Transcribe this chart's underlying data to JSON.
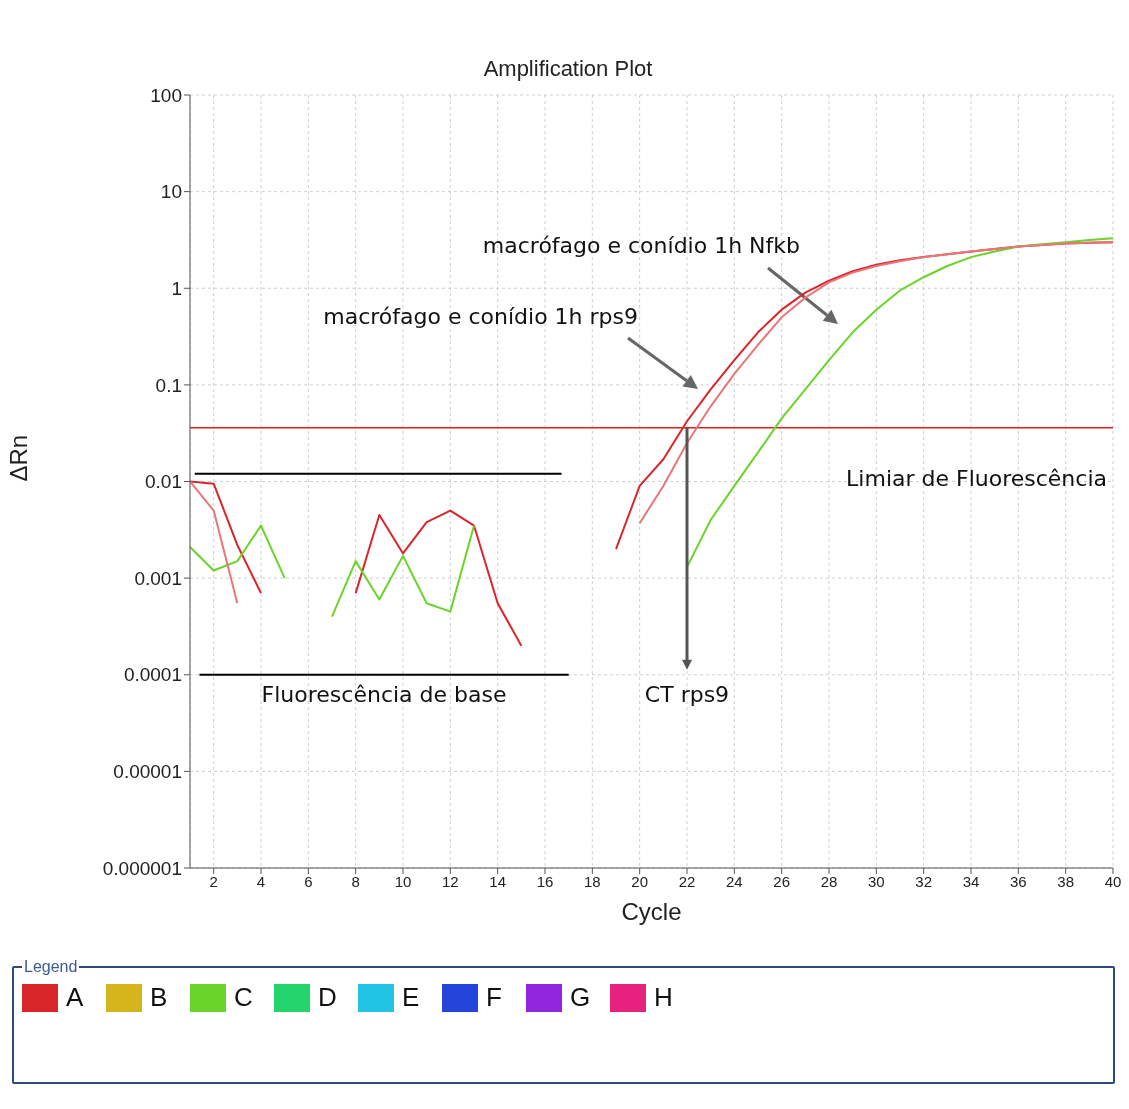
{
  "chart_data": {
    "type": "line",
    "title": "Amplification Plot",
    "xlabel": "Cycle",
    "ylabel": "ΔRn",
    "legend_title": "Legend",
    "legend": "bottom",
    "log": "y",
    "grid": true,
    "marker": "none",
    "line_style": "solid",
    "x": [
      1,
      2,
      3,
      4,
      5,
      6,
      7,
      8,
      9,
      10,
      11,
      12,
      13,
      14,
      15,
      16,
      17,
      18,
      19,
      20,
      21,
      22,
      23,
      24,
      25,
      26,
      27,
      28,
      29,
      30,
      31,
      32,
      33,
      34,
      35,
      36,
      37,
      38,
      39,
      40
    ],
    "xlim": [
      1,
      40
    ],
    "xticks": [
      2,
      4,
      6,
      8,
      10,
      12,
      14,
      16,
      18,
      20,
      22,
      24,
      26,
      28,
      30,
      32,
      34,
      36,
      38,
      40
    ],
    "ylim": [
      1e-06,
      100
    ],
    "yticks": [
      {
        "value": 1e-06,
        "label": "0.000001"
      },
      {
        "value": 1e-05,
        "label": "0.00001"
      },
      {
        "value": 0.0001,
        "label": "0.0001"
      },
      {
        "value": 0.001,
        "label": "0.001"
      },
      {
        "value": 0.01,
        "label": "0.01"
      },
      {
        "value": 0.1,
        "label": "0.1"
      },
      1,
      10,
      100
    ],
    "series": [
      {
        "name": "A",
        "color": "#d9262a",
        "values": [
          0.01,
          0.0095,
          0.0022,
          0.0007,
          null,
          null,
          null,
          0.0007,
          0.0045,
          0.0018,
          0.0038,
          0.005,
          0.0035,
          0.00055,
          0.0002,
          null,
          null,
          null,
          0.002,
          0.009,
          0.017,
          0.042,
          0.09,
          0.18,
          0.35,
          0.6,
          0.9,
          1.2,
          1.5,
          1.75,
          1.95,
          2.1,
          2.25,
          2.4,
          2.55,
          2.7,
          2.8,
          2.9,
          2.95,
          3.0
        ]
      },
      {
        "name": "B",
        "color": "#d6b41c",
        "values": [
          null,
          null,
          null,
          null,
          null,
          null,
          null,
          null,
          null,
          null,
          null,
          null,
          null,
          null,
          null,
          null,
          null,
          null,
          null,
          null,
          null,
          null,
          null,
          null,
          null,
          null,
          null,
          null,
          null,
          null,
          null,
          null,
          null,
          null,
          null,
          null,
          null,
          null,
          null,
          null
        ]
      },
      {
        "name": "C",
        "color": "#6ad42a",
        "values": [
          0.0021,
          0.0012,
          0.0015,
          0.0035,
          0.001,
          null,
          0.0004,
          0.0015,
          0.0006,
          0.0017,
          0.00055,
          0.00045,
          0.0035,
          null,
          null,
          null,
          null,
          null,
          null,
          null,
          null,
          0.0013,
          0.004,
          0.009,
          0.02,
          0.045,
          0.09,
          0.18,
          0.35,
          0.6,
          0.95,
          1.3,
          1.7,
          2.1,
          2.4,
          2.7,
          2.85,
          3.0,
          3.15,
          3.3
        ]
      },
      {
        "name": "D",
        "color": "#22d46a",
        "values": [
          null,
          null,
          null,
          null,
          null,
          null,
          null,
          null,
          null,
          null,
          null,
          null,
          null,
          null,
          null,
          null,
          null,
          null,
          null,
          null,
          null,
          null,
          null,
          null,
          null,
          null,
          null,
          null,
          null,
          null,
          null,
          null,
          null,
          null,
          null,
          null,
          null,
          null,
          null,
          null
        ]
      },
      {
        "name": "E",
        "color": "#22c4e6",
        "values": [
          null,
          null,
          null,
          null,
          null,
          null,
          null,
          null,
          null,
          null,
          null,
          null,
          null,
          null,
          null,
          null,
          null,
          null,
          null,
          null,
          null,
          null,
          null,
          null,
          null,
          null,
          null,
          null,
          null,
          null,
          null,
          null,
          null,
          null,
          null,
          null,
          null,
          null,
          null,
          null
        ]
      },
      {
        "name": "F",
        "color": "#2244d8",
        "values": [
          null,
          null,
          null,
          null,
          null,
          null,
          null,
          null,
          null,
          null,
          null,
          null,
          null,
          null,
          null,
          null,
          null,
          null,
          null,
          null,
          null,
          null,
          null,
          null,
          null,
          null,
          null,
          null,
          null,
          null,
          null,
          null,
          null,
          null,
          null,
          null,
          null,
          null,
          null,
          null
        ]
      },
      {
        "name": "G",
        "color": "#9226dc",
        "values": [
          null,
          null,
          null,
          null,
          null,
          null,
          null,
          null,
          null,
          null,
          null,
          null,
          null,
          null,
          null,
          null,
          null,
          null,
          null,
          null,
          null,
          null,
          null,
          null,
          null,
          null,
          null,
          null,
          null,
          null,
          null,
          null,
          null,
          null,
          null,
          null,
          null,
          null,
          null,
          null
        ]
      },
      {
        "name": "H",
        "color": "#e6227e",
        "values": [
          null,
          null,
          null,
          null,
          null,
          null,
          null,
          null,
          null,
          null,
          null,
          null,
          null,
          null,
          null,
          null,
          null,
          null,
          null,
          null,
          null,
          null,
          null,
          null,
          null,
          null,
          null,
          null,
          null,
          null,
          null,
          null,
          null,
          null,
          null,
          null,
          null,
          null,
          null,
          null
        ]
      },
      {
        "color": "#e8777a",
        "values": [
          0.01,
          0.005,
          0.00055,
          null,
          null,
          null,
          null,
          null,
          null,
          null,
          null,
          null,
          null,
          null,
          null,
          null,
          null,
          null,
          null,
          0.0037,
          0.009,
          0.025,
          0.06,
          0.13,
          0.26,
          0.5,
          0.8,
          1.15,
          1.45,
          1.7,
          1.9,
          2.1,
          2.25,
          2.4,
          2.55,
          2.7,
          2.8,
          2.9,
          2.95,
          3.0
        ]
      }
    ],
    "ref_lines": [
      {
        "axis": "y",
        "value": 0.036,
        "label": "Limiar de Fluorescência",
        "color": "#e02020"
      },
      {
        "axis": "y",
        "value": 0.012,
        "color": "#000000"
      },
      {
        "axis": "y",
        "value": 0.0001,
        "label": "Fluorescência de base",
        "color": "#000000"
      }
    ],
    "annotations": [
      "macrófago e conídio 1h Nfkb",
      "macrófago e conídio 1h rps9",
      {
        "text": "CT rps9",
        "x": 22,
        "y": 0.036
      }
    ]
  }
}
